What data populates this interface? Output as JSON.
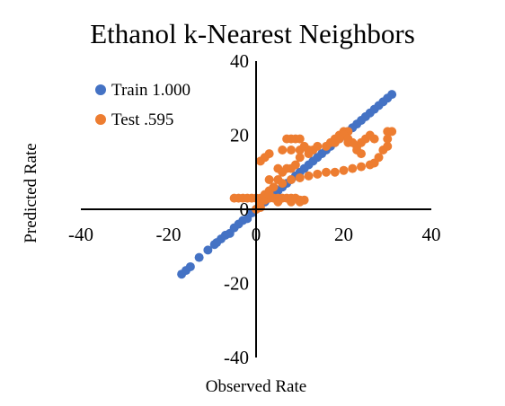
{
  "chart_data": {
    "type": "scatter",
    "title": "Ethanol k-Nearest Neighbors",
    "xlabel": "Observed Rate",
    "ylabel": "Predicted Rate",
    "xlim": [
      -40,
      40
    ],
    "ylim": [
      -40,
      40
    ],
    "x_ticks": [
      "-40",
      "-20",
      "0",
      "20",
      "40"
    ],
    "y_ticks": [
      "40",
      "20",
      "0",
      "-20",
      "-40"
    ],
    "x_tick_values": [
      -40,
      -20,
      0,
      20,
      40
    ],
    "y_tick_values": [
      40,
      20,
      0,
      -20,
      -40
    ],
    "grid": false,
    "legend_position": "top-left",
    "series": [
      {
        "name": "Train 1.000",
        "color": "#4472C4",
        "points": [
          [
            -17,
            -17.5
          ],
          [
            -16,
            -16.5
          ],
          [
            -15,
            -15.5
          ],
          [
            -13,
            -13
          ],
          [
            -11,
            -11
          ],
          [
            -9.5,
            -9.5
          ],
          [
            -9,
            -9
          ],
          [
            -8,
            -8
          ],
          [
            -7,
            -7
          ],
          [
            -6,
            -6.5
          ],
          [
            -5,
            -5
          ],
          [
            -4,
            -4
          ],
          [
            -3,
            -3
          ],
          [
            -2,
            -2.5
          ],
          [
            -1,
            -1
          ],
          [
            0,
            0
          ],
          [
            1,
            1
          ],
          [
            2,
            2
          ],
          [
            3,
            3
          ],
          [
            4,
            4
          ],
          [
            5,
            5
          ],
          [
            6,
            6
          ],
          [
            7,
            7
          ],
          [
            8,
            8
          ],
          [
            9,
            9
          ],
          [
            10,
            10
          ],
          [
            11,
            11
          ],
          [
            12,
            12
          ],
          [
            13,
            13
          ],
          [
            14,
            14
          ],
          [
            15,
            15
          ],
          [
            16,
            16
          ],
          [
            17,
            17
          ],
          [
            18,
            18
          ],
          [
            19,
            19
          ],
          [
            20,
            20
          ],
          [
            21,
            21
          ],
          [
            22,
            22
          ],
          [
            23,
            23
          ],
          [
            24,
            24
          ],
          [
            25,
            25
          ],
          [
            26,
            26
          ],
          [
            27,
            27
          ],
          [
            28,
            28
          ],
          [
            29,
            29
          ],
          [
            30,
            30
          ],
          [
            31,
            31
          ]
        ]
      },
      {
        "name": "Test .595",
        "color": "#ED7D31",
        "points": [
          [
            -5,
            3
          ],
          [
            -4,
            3
          ],
          [
            -3,
            3
          ],
          [
            -2,
            3
          ],
          [
            -1,
            3
          ],
          [
            0,
            3
          ],
          [
            1,
            3
          ],
          [
            2,
            2.5
          ],
          [
            3,
            3
          ],
          [
            4,
            3
          ],
          [
            5,
            3
          ],
          [
            6,
            3
          ],
          [
            7,
            3
          ],
          [
            8,
            3
          ],
          [
            9,
            3
          ],
          [
            10,
            2.5
          ],
          [
            11,
            2.5
          ],
          [
            5,
            2
          ],
          [
            8,
            2
          ],
          [
            10,
            2
          ],
          [
            0,
            0
          ],
          [
            1,
            0.5
          ],
          [
            1,
            2
          ],
          [
            2,
            4
          ],
          [
            3,
            5
          ],
          [
            4,
            6
          ],
          [
            3,
            4
          ],
          [
            1,
            13
          ],
          [
            2,
            14
          ],
          [
            3,
            15
          ],
          [
            3,
            8
          ],
          [
            5,
            8
          ],
          [
            6,
            7
          ],
          [
            8,
            8
          ],
          [
            10,
            8.5
          ],
          [
            12,
            9
          ],
          [
            14,
            9.5
          ],
          [
            16,
            10
          ],
          [
            18,
            10
          ],
          [
            20,
            10.5
          ],
          [
            22,
            11
          ],
          [
            24,
            11.5
          ],
          [
            26,
            12
          ],
          [
            27,
            12.5
          ],
          [
            28,
            14
          ],
          [
            29,
            16
          ],
          [
            30,
            17
          ],
          [
            5,
            11
          ],
          [
            6,
            10
          ],
          [
            7,
            11
          ],
          [
            8,
            11
          ],
          [
            9,
            12
          ],
          [
            10,
            14
          ],
          [
            6,
            16
          ],
          [
            8,
            16
          ],
          [
            10,
            16
          ],
          [
            12,
            15
          ],
          [
            13,
            16
          ],
          [
            14,
            17
          ],
          [
            16,
            17
          ],
          [
            17,
            18
          ],
          [
            18,
            18
          ],
          [
            7,
            19
          ],
          [
            8,
            19
          ],
          [
            9,
            19
          ],
          [
            10,
            19
          ],
          [
            11,
            17
          ],
          [
            12,
            16
          ],
          [
            18,
            19
          ],
          [
            19,
            20
          ],
          [
            20,
            21
          ],
          [
            21,
            21
          ],
          [
            20,
            20
          ],
          [
            19,
            19
          ],
          [
            21,
            18
          ],
          [
            22,
            18
          ],
          [
            23,
            17
          ],
          [
            24,
            18
          ],
          [
            25,
            19
          ],
          [
            26,
            20
          ],
          [
            27,
            19
          ],
          [
            24,
            15
          ],
          [
            23,
            16
          ],
          [
            21,
            19
          ],
          [
            30,
            21
          ],
          [
            31,
            21
          ],
          [
            30,
            19
          ]
        ]
      }
    ]
  }
}
